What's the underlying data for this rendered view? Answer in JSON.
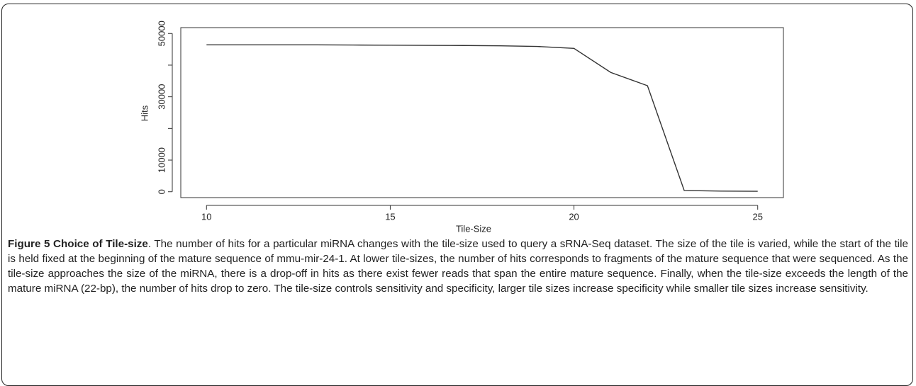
{
  "chart_data": {
    "type": "line",
    "xlabel": "Tile-Size",
    "ylabel": "Hits",
    "x": [
      10,
      11,
      12,
      13,
      14,
      15,
      16,
      17,
      18,
      19,
      20,
      21,
      22,
      23,
      24,
      25
    ],
    "series": [
      {
        "color": "#333333",
        "values": [
          46400,
          46400,
          46400,
          46400,
          46350,
          46300,
          46250,
          46200,
          46100,
          45900,
          45300,
          37700,
          33500,
          400,
          200,
          150
        ]
      }
    ],
    "xlim": [
      9.3,
      25.7
    ],
    "xticks": [
      10,
      15,
      20,
      25
    ],
    "ylim": [
      -1850,
      51850
    ],
    "yticks": [
      0,
      10000,
      30000,
      50000
    ],
    "yticks_unlabeled": [
      20000,
      40000
    ]
  },
  "caption": {
    "label": "Figure 5 Choice of Tile-size",
    "text": ". The number of hits for a particular miRNA changes with the tile-size used to query a sRNA-Seq dataset. The size of the tile is varied, while the start of the tile is held fixed at the beginning of the mature sequence of mmu-mir-24-1. At lower tile-sizes, the number of hits corresponds to fragments of the mature sequence that were sequenced. As the tile-size approaches the size of the miRNA, there is a drop-off in hits as there exist fewer reads that span the entire mature sequence. Finally, when the tile-size exceeds the length of the mature miRNA (22-bp), the number of hits drop to zero. The tile-size controls sensitivity and specificity, larger tile sizes increase specificity while smaller tile sizes increase sensitivity."
  }
}
